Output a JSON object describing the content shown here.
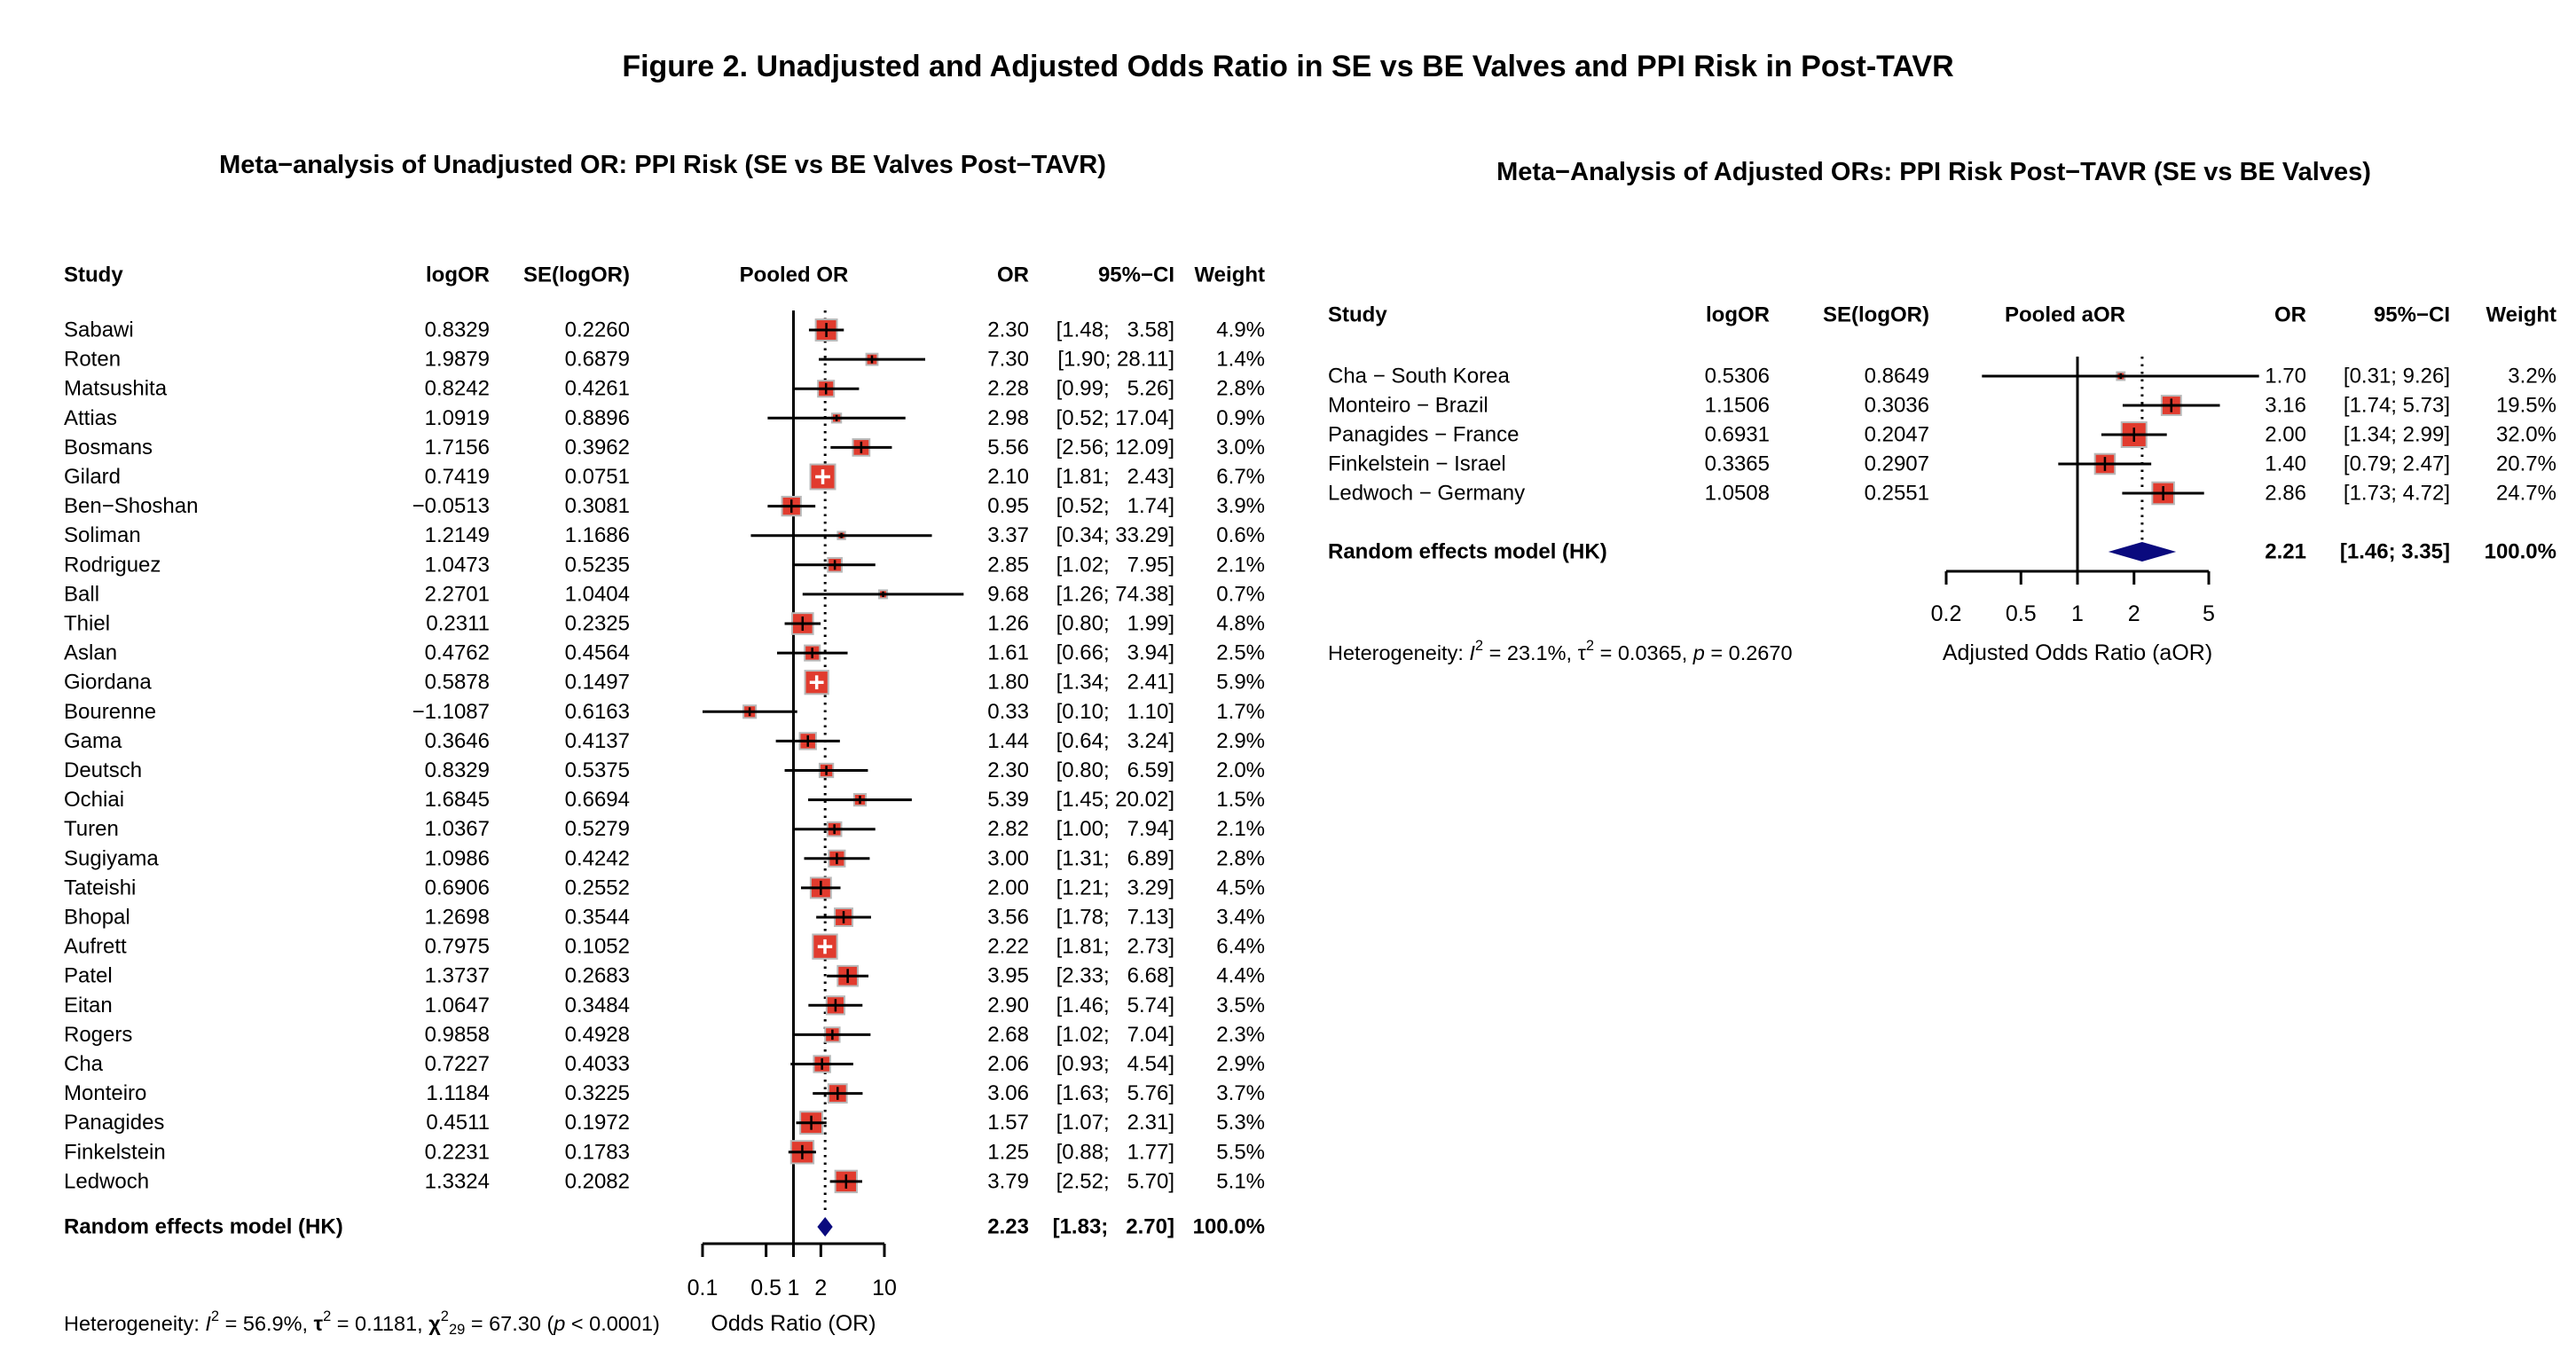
{
  "figure_title": "Figure 2. Unadjusted and Adjusted Odds Ratio in SE vs BE Valves and PPI Risk in Post-TAVR",
  "colors": {
    "square_fill": "#e13b2e",
    "square_border": "#b9b9b9",
    "diamond_fill": "#0a0a7e",
    "line": "#000000",
    "background": "#ffffff",
    "text": "#000000"
  },
  "chart_data": [
    {
      "type": "forest",
      "panel": "unadjusted",
      "title": "Meta−analysis of Unadjusted OR: PPI Risk (SE vs BE Valves Post−TAVR)",
      "columns": {
        "study": "Study",
        "logor": "logOR",
        "se": "SE(logOR)",
        "plot": "Pooled OR",
        "or": "OR",
        "ci": "95%−CI",
        "weight": "Weight"
      },
      "axis": {
        "scale": "log",
        "xmin": 0.1,
        "xmax": 10,
        "ticks": [
          0.1,
          0.5,
          1,
          2,
          10
        ],
        "tick_labels": [
          "0.1",
          "0.5",
          "1",
          "2",
          "10"
        ],
        "label": "Odds Ratio (OR)",
        "ref_line": 1
      },
      "studies": [
        {
          "name": "Sabawi",
          "logor": "0.8329",
          "se": "0.2260",
          "or": 2.3,
          "lo": 1.48,
          "hi": 3.58,
          "weight": 4.9
        },
        {
          "name": "Roten",
          "logor": "1.9879",
          "se": "0.6879",
          "or": 7.3,
          "lo": 1.9,
          "hi": 28.11,
          "weight": 1.4
        },
        {
          "name": "Matsushita",
          "logor": "0.8242",
          "se": "0.4261",
          "or": 2.28,
          "lo": 0.99,
          "hi": 5.26,
          "weight": 2.8
        },
        {
          "name": "Attias",
          "logor": "1.0919",
          "se": "0.8896",
          "or": 2.98,
          "lo": 0.52,
          "hi": 17.04,
          "weight": 0.9
        },
        {
          "name": "Bosmans",
          "logor": "1.7156",
          "se": "0.3962",
          "or": 5.56,
          "lo": 2.56,
          "hi": 12.09,
          "weight": 3.0
        },
        {
          "name": "Gilard",
          "logor": "0.7419",
          "se": "0.0751",
          "or": 2.1,
          "lo": 1.81,
          "hi": 2.43,
          "weight": 6.7
        },
        {
          "name": "Ben−Shoshan",
          "logor": "−0.0513",
          "se": "0.3081",
          "or": 0.95,
          "lo": 0.52,
          "hi": 1.74,
          "weight": 3.9
        },
        {
          "name": "Soliman",
          "logor": "1.2149",
          "se": "1.1686",
          "or": 3.37,
          "lo": 0.34,
          "hi": 33.29,
          "weight": 0.6
        },
        {
          "name": "Rodriguez",
          "logor": "1.0473",
          "se": "0.5235",
          "or": 2.85,
          "lo": 1.02,
          "hi": 7.95,
          "weight": 2.1
        },
        {
          "name": "Ball",
          "logor": "2.2701",
          "se": "1.0404",
          "or": 9.68,
          "lo": 1.26,
          "hi": 74.38,
          "weight": 0.7
        },
        {
          "name": "Thiel",
          "logor": "0.2311",
          "se": "0.2325",
          "or": 1.26,
          "lo": 0.8,
          "hi": 1.99,
          "weight": 4.8
        },
        {
          "name": "Aslan",
          "logor": "0.4762",
          "se": "0.4564",
          "or": 1.61,
          "lo": 0.66,
          "hi": 3.94,
          "weight": 2.5
        },
        {
          "name": "Giordana",
          "logor": "0.5878",
          "se": "0.1497",
          "or": 1.8,
          "lo": 1.34,
          "hi": 2.41,
          "weight": 5.9
        },
        {
          "name": "Bourenne",
          "logor": "−1.1087",
          "se": "0.6163",
          "or": 0.33,
          "lo": 0.1,
          "hi": 1.1,
          "weight": 1.7
        },
        {
          "name": "Gama",
          "logor": "0.3646",
          "se": "0.4137",
          "or": 1.44,
          "lo": 0.64,
          "hi": 3.24,
          "weight": 2.9
        },
        {
          "name": "Deutsch",
          "logor": "0.8329",
          "se": "0.5375",
          "or": 2.3,
          "lo": 0.8,
          "hi": 6.59,
          "weight": 2.0
        },
        {
          "name": "Ochiai",
          "logor": "1.6845",
          "se": "0.6694",
          "or": 5.39,
          "lo": 1.45,
          "hi": 20.02,
          "weight": 1.5
        },
        {
          "name": "Turen",
          "logor": "1.0367",
          "se": "0.5279",
          "or": 2.82,
          "lo": 1.0,
          "hi": 7.94,
          "weight": 2.1
        },
        {
          "name": "Sugiyama",
          "logor": "1.0986",
          "se": "0.4242",
          "or": 3.0,
          "lo": 1.31,
          "hi": 6.89,
          "weight": 2.8
        },
        {
          "name": "Tateishi",
          "logor": "0.6906",
          "se": "0.2552",
          "or": 2.0,
          "lo": 1.21,
          "hi": 3.29,
          "weight": 4.5
        },
        {
          "name": "Bhopal",
          "logor": "1.2698",
          "se": "0.3544",
          "or": 3.56,
          "lo": 1.78,
          "hi": 7.13,
          "weight": 3.4
        },
        {
          "name": "Aufrett",
          "logor": "0.7975",
          "se": "0.1052",
          "or": 2.22,
          "lo": 1.81,
          "hi": 2.73,
          "weight": 6.4
        },
        {
          "name": "Patel",
          "logor": "1.3737",
          "se": "0.2683",
          "or": 3.95,
          "lo": 2.33,
          "hi": 6.68,
          "weight": 4.4
        },
        {
          "name": "Eitan",
          "logor": "1.0647",
          "se": "0.3484",
          "or": 2.9,
          "lo": 1.46,
          "hi": 5.74,
          "weight": 3.5
        },
        {
          "name": "Rogers",
          "logor": "0.9858",
          "se": "0.4928",
          "or": 2.68,
          "lo": 1.02,
          "hi": 7.04,
          "weight": 2.3
        },
        {
          "name": "Cha",
          "logor": "0.7227",
          "se": "0.4033",
          "or": 2.06,
          "lo": 0.93,
          "hi": 4.54,
          "weight": 2.9
        },
        {
          "name": "Monteiro",
          "logor": "1.1184",
          "se": "0.3225",
          "or": 3.06,
          "lo": 1.63,
          "hi": 5.76,
          "weight": 3.7
        },
        {
          "name": "Panagides",
          "logor": "0.4511",
          "se": "0.1972",
          "or": 1.57,
          "lo": 1.07,
          "hi": 2.31,
          "weight": 5.3
        },
        {
          "name": "Finkelstein",
          "logor": "0.2231",
          "se": "0.1783",
          "or": 1.25,
          "lo": 0.88,
          "hi": 1.77,
          "weight": 5.5
        },
        {
          "name": "Ledwoch",
          "logor": "1.3324",
          "se": "0.2082",
          "or": 3.79,
          "lo": 2.52,
          "hi": 5.7,
          "weight": 5.1
        }
      ],
      "pooled": {
        "label": "Random effects model (HK)",
        "or": 2.23,
        "lo": 1.83,
        "hi": 2.7,
        "weight_txt": "100.0%"
      },
      "plot_header": "Pooled OR",
      "heterogeneity": [
        {
          "t": "Heterogeneity: "
        },
        {
          "t": "I",
          "i": true
        },
        {
          "t": "2",
          "sup": true
        },
        {
          "t": " = 56.9%, "
        },
        {
          "t": "τ",
          "b": true
        },
        {
          "t": "2",
          "sup": true
        },
        {
          "t": " = 0.1181, "
        },
        {
          "t": "χ",
          "b": true
        },
        {
          "t": "2",
          "sup": true
        },
        {
          "t": "29",
          "sub": true
        },
        {
          "t": " = 67.30 ("
        },
        {
          "t": "p",
          "i": true
        },
        {
          "t": " < 0.0001)"
        }
      ]
    },
    {
      "type": "forest",
      "panel": "adjusted",
      "title": "Meta−Analysis of Adjusted ORs: PPI Risk Post−TAVR (SE vs BE Valves)",
      "columns": {
        "study": "Study",
        "logor": "logOR",
        "se": "SE(logOR)",
        "plot": "Pooled aOR",
        "or": "OR",
        "ci": "95%−CI",
        "weight": "Weight"
      },
      "axis": {
        "scale": "log",
        "xmin": 0.2,
        "xmax": 5,
        "ticks": [
          0.2,
          0.5,
          1,
          2,
          5
        ],
        "tick_labels": [
          "0.2",
          "0.5",
          "1",
          "2",
          "5"
        ],
        "label": "Adjusted Odds Ratio (aOR)",
        "ref_line": 1
      },
      "studies": [
        {
          "name": "Cha − South Korea",
          "logor": "0.5306",
          "se": "0.8649",
          "or": 1.7,
          "lo": 0.31,
          "hi": 9.26,
          "weight": 3.2
        },
        {
          "name": "Monteiro − Brazil",
          "logor": "1.1506",
          "se": "0.3036",
          "or": 3.16,
          "lo": 1.74,
          "hi": 5.73,
          "weight": 19.5
        },
        {
          "name": "Panagides − France",
          "logor": "0.6931",
          "se": "0.2047",
          "or": 2.0,
          "lo": 1.34,
          "hi": 2.99,
          "weight": 32.0
        },
        {
          "name": "Finkelstein − Israel",
          "logor": "0.3365",
          "se": "0.2907",
          "or": 1.4,
          "lo": 0.79,
          "hi": 2.47,
          "weight": 20.7
        },
        {
          "name": "Ledwoch − Germany",
          "logor": "1.0508",
          "se": "0.2551",
          "or": 2.86,
          "lo": 1.73,
          "hi": 4.72,
          "weight": 24.7
        }
      ],
      "pooled": {
        "label": "Random effects model (HK)",
        "or": 2.21,
        "lo": 1.46,
        "hi": 3.35,
        "weight_txt": "100.0%"
      },
      "plot_header": "Pooled aOR",
      "heterogeneity": [
        {
          "t": "Heterogeneity: "
        },
        {
          "t": "I",
          "i": true
        },
        {
          "t": "2",
          "sup": true
        },
        {
          "t": " = 23.1%, "
        },
        {
          "t": "τ"
        },
        {
          "t": "2",
          "sup": true
        },
        {
          "t": " = 0.0365, "
        },
        {
          "t": "p",
          "i": true
        },
        {
          "t": " = 0.2670"
        }
      ]
    }
  ]
}
